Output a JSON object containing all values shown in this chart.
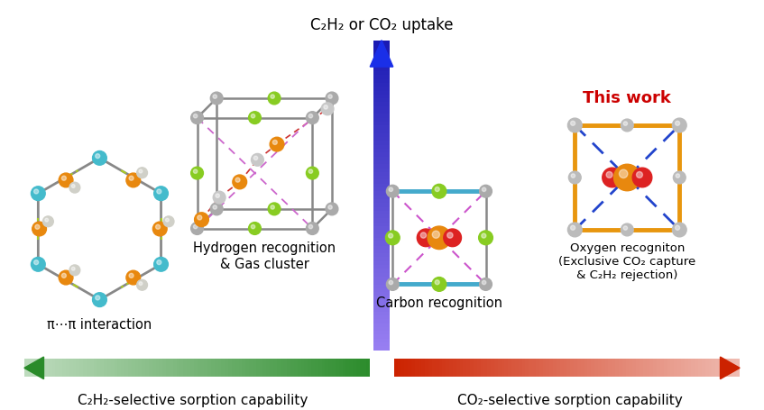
{
  "title_top": "C₂H₂ or CO₂ uptake",
  "label_pi": "π⋯π interaction",
  "label_h": "Hydrogen recognition\n& Gas cluster",
  "label_c": "Carbon recognition",
  "label_o": "Oxygen recogniton\n(Exclusive CO₂ capture\n& C₂H₂ rejection)",
  "label_this_work": "This work",
  "label_left": "C₂H₂-selective sorption capability",
  "label_right": "CO₂-selective sorption capability",
  "bg_color": "#ffffff",
  "arrow_up_color_top": "#1a2fc8",
  "arrow_up_color_bot": "#8899ee",
  "arrow_left_color": "#2a8b2a",
  "arrow_right_color": "#cc2200",
  "this_work_color": "#cc0000",
  "orange_color": "#e8880e",
  "gray_color": "#a0a0a0",
  "green_color": "#88cc22",
  "cyan_color": "#44bbcc",
  "red_color": "#dd2222",
  "gold_color": "#e8960e",
  "white_color": "#e0e0e0"
}
